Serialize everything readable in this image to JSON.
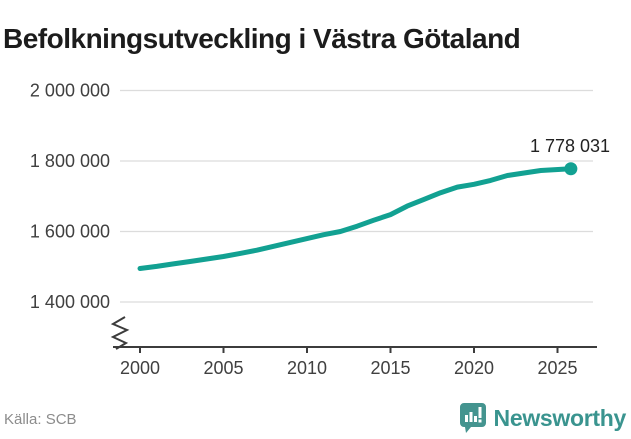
{
  "title": "Befolkningsutveckling i Västra Götaland",
  "source": "Källa: SCB",
  "branding": {
    "name": "Newsworthy",
    "icon": "newsworthy-speech-bubble-bar-chart-icon"
  },
  "colors": {
    "line": "#12a192",
    "end_dot": "#12a192",
    "grid": "#dcdcdc",
    "axis": "#3c3c3c",
    "tick_label": "#404040",
    "title": "#1c1c1c",
    "end_label": "#222222",
    "source": "#8c8c8c",
    "brand": "#3a948f",
    "background": "#ffffff"
  },
  "chart_data": {
    "type": "line",
    "title": "Befolkningsutveckling i Västra Götaland",
    "xlabel": "",
    "ylabel": "",
    "grid": "horizontal",
    "legend": false,
    "y_axis_break": true,
    "xlim": [
      1999,
      2027.3
    ],
    "ylim": [
      1400000,
      2000000
    ],
    "x": [
      2000,
      2001,
      2002,
      2003,
      2004,
      2005,
      2006,
      2007,
      2008,
      2009,
      2010,
      2011,
      2012,
      2013,
      2014,
      2015,
      2016,
      2017,
      2018,
      2019,
      2020,
      2021,
      2022,
      2023,
      2024,
      2025.8
    ],
    "values": [
      1495000,
      1501000,
      1508000,
      1515000,
      1522000,
      1529000,
      1538000,
      1547000,
      1558000,
      1569000,
      1580000,
      1591000,
      1600000,
      1615000,
      1632000,
      1648000,
      1672000,
      1691000,
      1710000,
      1726000,
      1734000,
      1745000,
      1759000,
      1766000,
      1773000,
      1778031
    ],
    "end_value": 1778031,
    "end_label": "1 778 031",
    "xticks": {
      "values": [
        2000,
        2005,
        2010,
        2015,
        2020,
        2025
      ],
      "labels": [
        "2000",
        "2005",
        "2010",
        "2015",
        "2020",
        "2025"
      ]
    },
    "yticks": {
      "values": [
        2000000,
        1800000,
        1600000,
        1400000
      ],
      "labels": [
        "2 000 000",
        "1 800 000",
        "1 600 000",
        "1 400 000"
      ]
    }
  }
}
